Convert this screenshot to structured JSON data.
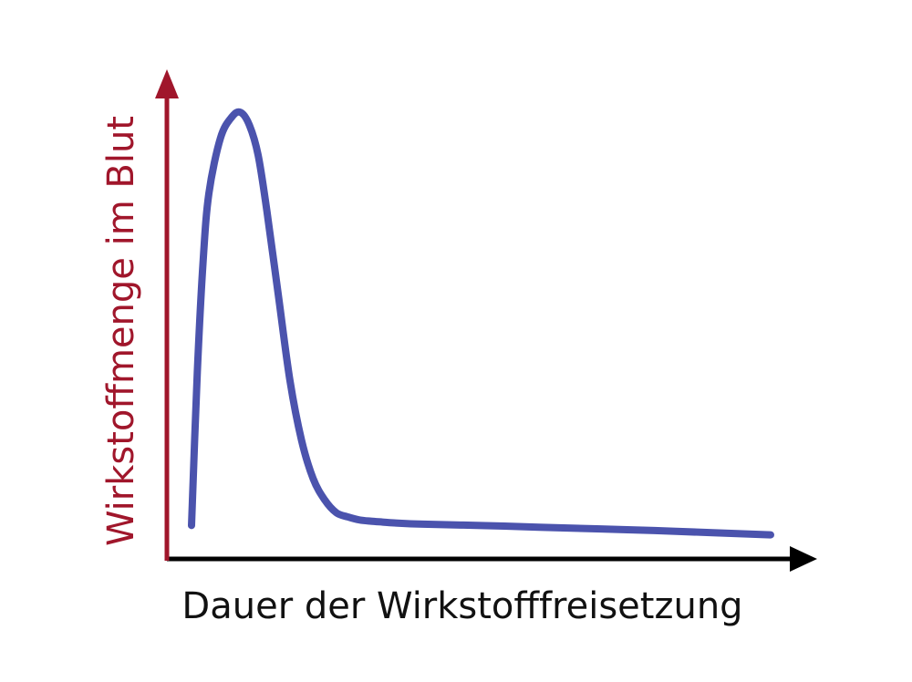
{
  "chart_data": {
    "type": "line",
    "title": "",
    "xlabel": "Dauer der Wirkstofffreisetzung",
    "ylabel": "Wirkstoffmenge im Blut",
    "xlim": [
      0,
      100
    ],
    "ylim": [
      0,
      100
    ],
    "grid": false,
    "legend": "none",
    "x_ticks": [],
    "y_ticks": [],
    "series": [
      {
        "x": [
          0,
          1,
          2,
          3,
          5,
          7,
          8.5,
          10,
          11.5,
          13,
          15,
          17,
          19,
          21,
          23,
          25,
          27,
          29,
          31,
          33,
          35,
          40,
          50,
          60,
          70,
          80,
          90,
          100
        ],
        "y": [
          4,
          40,
          66,
          82,
          95,
          100,
          101,
          98,
          91,
          78,
          58,
          38,
          24,
          15,
          10,
          7,
          6,
          5.3,
          5,
          4.8,
          4.6,
          4.3,
          4,
          3.6,
          3.2,
          2.8,
          2.3,
          1.8
        ],
        "color": "#4b53ad"
      }
    ],
    "colors": {
      "x_axis": "#000000",
      "y_axis": "#a0162b",
      "ylabel": "#a0162b",
      "xlabel": "#111111"
    }
  }
}
